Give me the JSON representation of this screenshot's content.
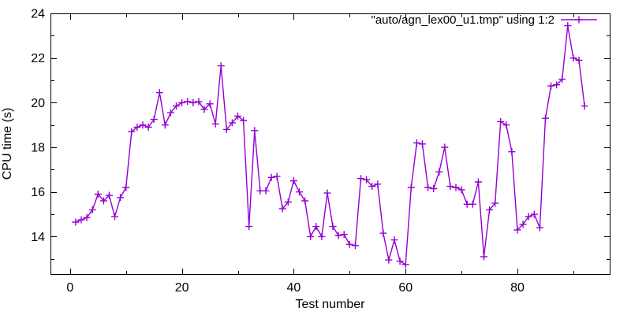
{
  "chart_data": {
    "type": "line",
    "title": "",
    "legend_label": "\"auto/agn_lex00_u1.tmp\" using 1:2",
    "xlabel": "Test number",
    "ylabel": "CPU time (s)",
    "series_color": "#9400d3",
    "marker": "plus",
    "grid": false,
    "legend_position": "top-right-inside",
    "x_range": [
      -3.5,
      96.5
    ],
    "y_range": [
      12.32,
      24
    ],
    "x_major_ticks": [
      0,
      20,
      40,
      60,
      80
    ],
    "x_minor_ticks": [
      10,
      30,
      50,
      70,
      90
    ],
    "y_major_ticks": [
      14,
      16,
      18,
      20,
      22,
      24
    ],
    "y_minor_ticks": [
      13,
      15,
      17,
      19,
      21,
      23
    ],
    "x": [
      1,
      2,
      3,
      4,
      5,
      6,
      7,
      8,
      9,
      10,
      11,
      12,
      13,
      14,
      15,
      16,
      17,
      18,
      19,
      20,
      21,
      22,
      23,
      24,
      25,
      26,
      27,
      28,
      29,
      30,
      31,
      32,
      33,
      34,
      35,
      36,
      37,
      38,
      39,
      40,
      41,
      42,
      43,
      44,
      45,
      46,
      47,
      48,
      49,
      50,
      51,
      52,
      53,
      54,
      55,
      56,
      57,
      58,
      59,
      60,
      61,
      62,
      63,
      64,
      65,
      66,
      67,
      68,
      69,
      70,
      71,
      72,
      73,
      74,
      75,
      76,
      77,
      78,
      79,
      80,
      81,
      82,
      83,
      84,
      85,
      86,
      87,
      88,
      89,
      90,
      91,
      92
    ],
    "values": [
      14.65,
      14.75,
      14.85,
      15.2,
      15.9,
      15.6,
      15.85,
      14.9,
      15.75,
      16.2,
      18.7,
      18.9,
      19.0,
      18.9,
      19.25,
      20.45,
      19.0,
      19.55,
      19.85,
      20.0,
      20.05,
      20.0,
      20.05,
      19.7,
      19.95,
      19.05,
      21.65,
      18.8,
      19.1,
      19.4,
      19.2,
      14.45,
      18.75,
      16.05,
      16.05,
      16.65,
      16.7,
      15.25,
      15.55,
      16.5,
      16.0,
      15.6,
      14.0,
      14.45,
      14.0,
      15.95,
      14.45,
      14.05,
      14.1,
      13.65,
      13.6,
      16.6,
      16.55,
      16.25,
      16.35,
      14.15,
      12.95,
      13.85,
      12.9,
      12.75,
      16.2,
      18.2,
      18.15,
      16.2,
      16.15,
      16.9,
      18.0,
      16.25,
      16.2,
      16.1,
      15.45,
      15.45,
      16.45,
      13.1,
      15.2,
      15.5,
      19.15,
      19.0,
      17.8,
      14.3,
      14.55,
      14.9,
      15.0,
      14.4,
      19.3,
      20.75,
      20.8,
      21.05,
      23.45,
      22.0,
      21.9,
      19.85
    ]
  }
}
